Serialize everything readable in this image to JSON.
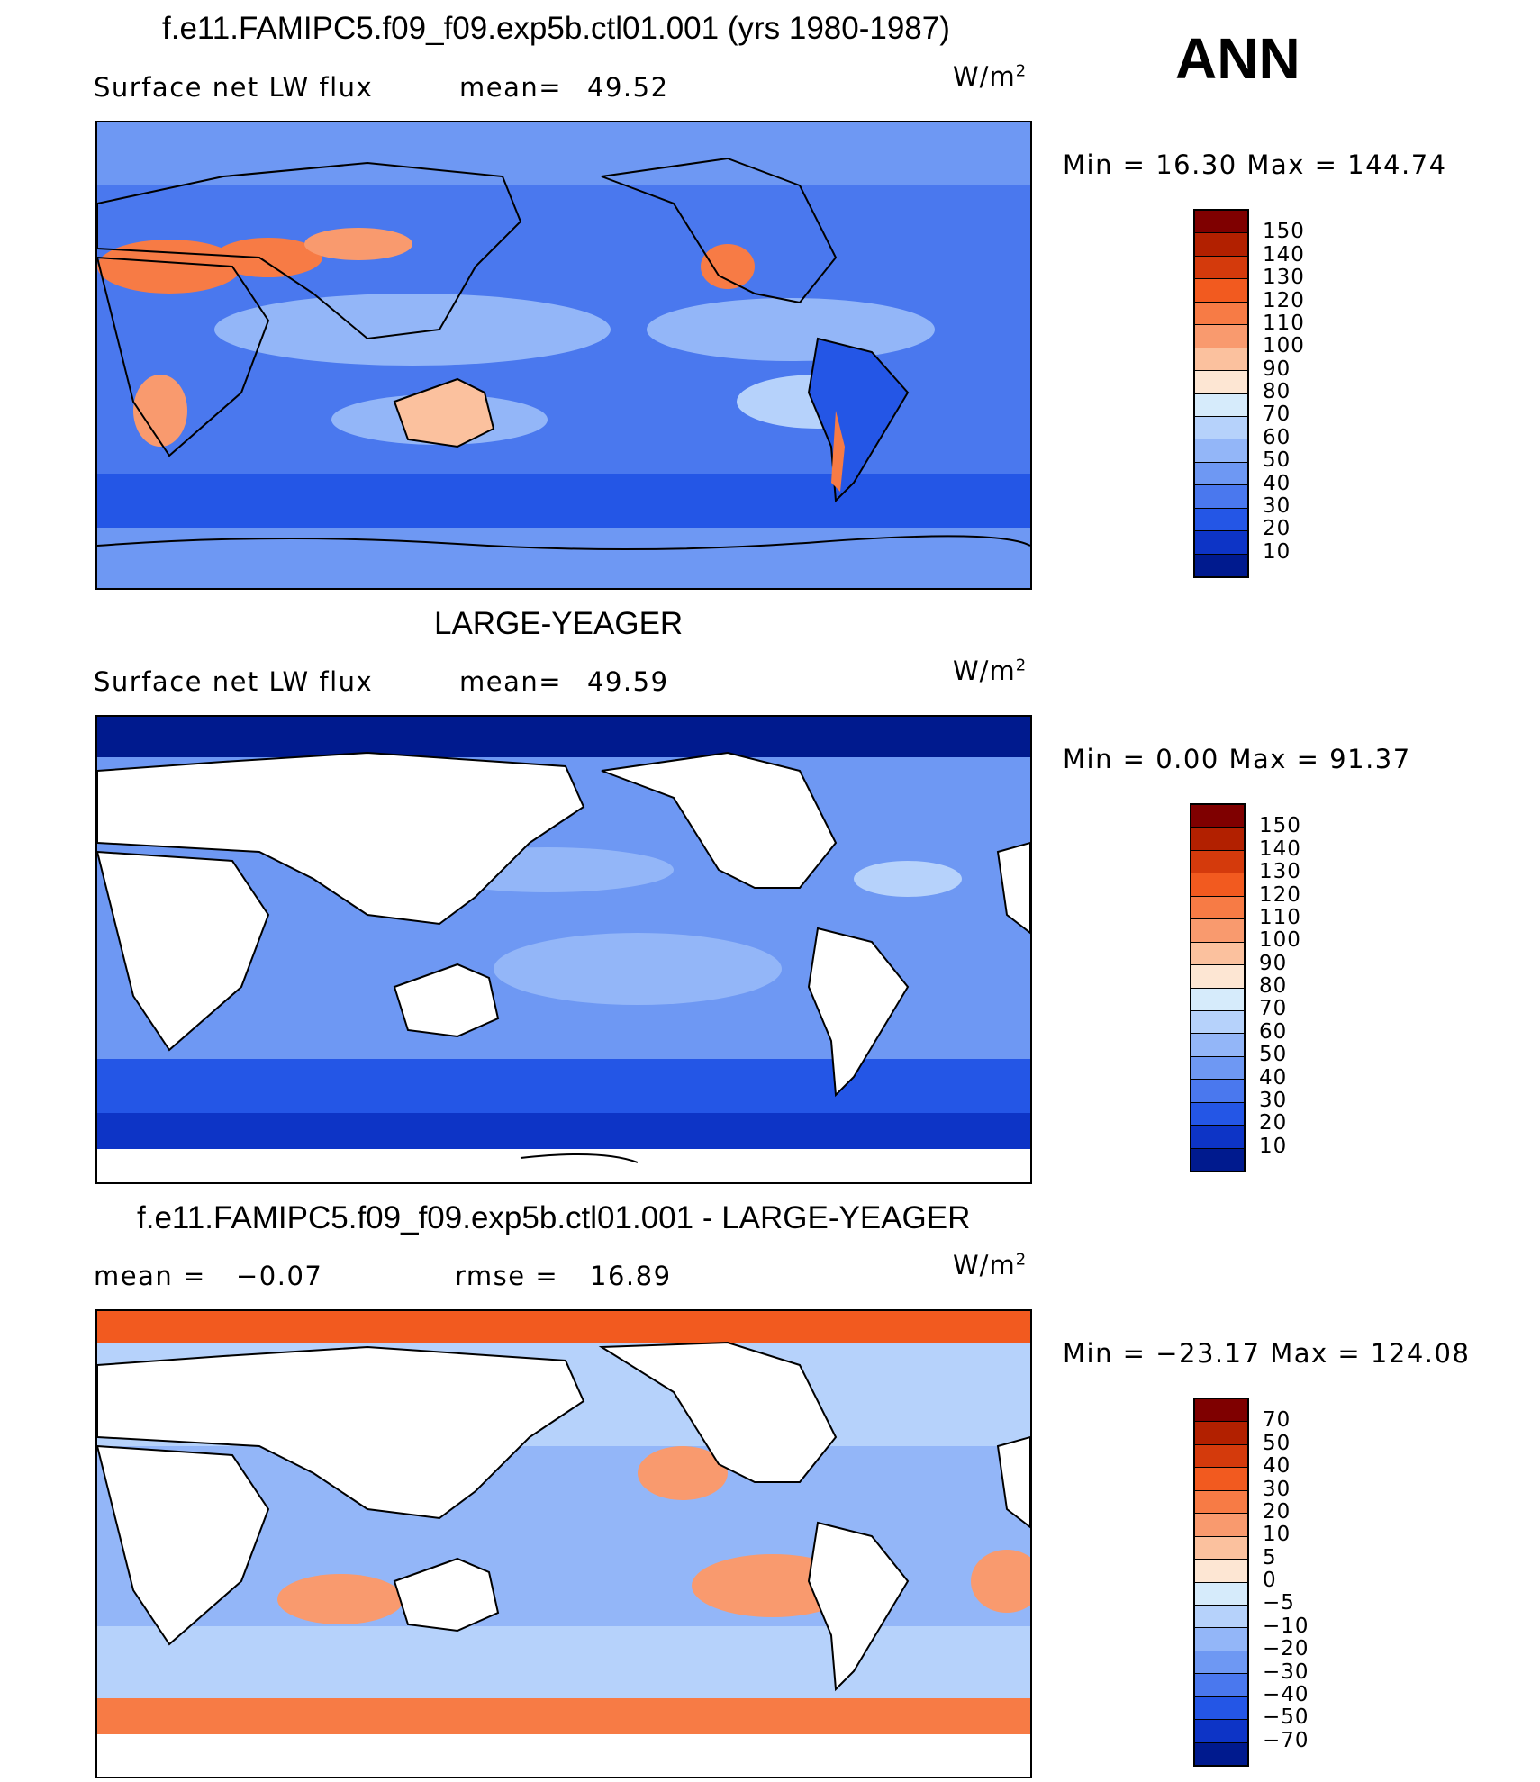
{
  "season": "ANN",
  "panels": [
    {
      "id": "model",
      "title": "f.e11.FAMIPC5.f09_f09.exp5b.ctl01.001 (yrs 1980-1987)",
      "left_label": "Surface net LW flux",
      "stat1_label": "mean=",
      "stat1_value": "49.52",
      "stat2_label": "",
      "stat2_value": "",
      "units": "W/m",
      "units_exp": "2",
      "minmax": "Min =   16.30 Max =  144.74",
      "levels": [
        "150",
        "140",
        "130",
        "120",
        "110",
        "100",
        "90",
        "80",
        "70",
        "60",
        "50",
        "40",
        "30",
        "20",
        "10"
      ],
      "colors": [
        "#7f0000",
        "#b22000",
        "#d43a0c",
        "#f25a1f",
        "#f77b45",
        "#f99a6e",
        "#fbc19e",
        "#fde6d3",
        "#d6ebfb",
        "#b6d2fb",
        "#93b6f8",
        "#6e98f3",
        "#4a78ee",
        "#2456e6",
        "#0d34c6",
        "#001a8e"
      ]
    },
    {
      "id": "obs",
      "title": "LARGE-YEAGER",
      "left_label": "Surface net LW flux",
      "stat1_label": "mean=",
      "stat1_value": "49.59",
      "stat2_label": "",
      "stat2_value": "",
      "units": "W/m",
      "units_exp": "2",
      "minmax": "Min =    0.00 Max =   91.37",
      "levels": [
        "150",
        "140",
        "130",
        "120",
        "110",
        "100",
        "90",
        "80",
        "70",
        "60",
        "50",
        "40",
        "30",
        "20",
        "10"
      ],
      "colors": [
        "#7f0000",
        "#b22000",
        "#d43a0c",
        "#f25a1f",
        "#f77b45",
        "#f99a6e",
        "#fbc19e",
        "#fde6d3",
        "#d6ebfb",
        "#b6d2fb",
        "#93b6f8",
        "#6e98f3",
        "#4a78ee",
        "#2456e6",
        "#0d34c6",
        "#001a8e"
      ]
    },
    {
      "id": "diff",
      "title": "f.e11.FAMIPC5.f09_f09.exp5b.ctl01.001 - LARGE-YEAGER",
      "left_label": "",
      "stat1_label": "mean =",
      "stat1_value": "−0.07",
      "stat2_label": "rmse =",
      "stat2_value": "16.89",
      "units": "W/m",
      "units_exp": "2",
      "minmax": "Min = −23.17 Max = 124.08",
      "levels": [
        "70",
        "50",
        "40",
        "30",
        "20",
        "10",
        "5",
        "0",
        "−5",
        "−10",
        "−20",
        "−30",
        "−40",
        "−50",
        "−70"
      ],
      "colors": [
        "#7f0000",
        "#b22000",
        "#d43a0c",
        "#f25a1f",
        "#f77b45",
        "#f99a6e",
        "#fbc19e",
        "#fde6d3",
        "#d6ebfb",
        "#b6d2fb",
        "#93b6f8",
        "#6e98f3",
        "#4a78ee",
        "#2456e6",
        "#0d34c6",
        "#001a8e"
      ]
    }
  ]
}
